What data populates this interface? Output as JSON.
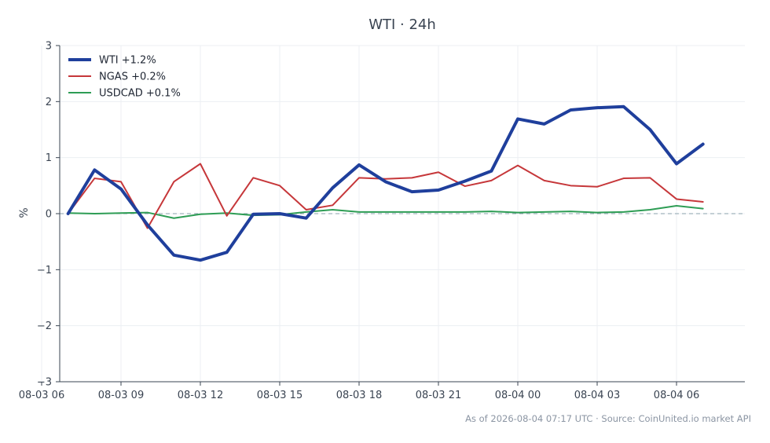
{
  "chart_data": {
    "type": "line",
    "title": "WTI · 24h",
    "xlabel": "",
    "ylabel": "%",
    "ylim": [
      -3,
      3
    ],
    "yticks": [
      "3",
      "2",
      "1",
      "0",
      "−1",
      "−2",
      "−3"
    ],
    "ytick_values": [
      3,
      2,
      1,
      0,
      -1,
      -2,
      -3
    ],
    "xlim": [
      "08-03 06:41",
      "08-04 08:35"
    ],
    "xticks": [
      "08-03 06",
      "08-03 09",
      "08-03 12",
      "08-03 15",
      "08-03 18",
      "08-03 21",
      "08-04 00",
      "08-04 03",
      "08-04 06"
    ],
    "xtick_values": [
      "08-03 06:00",
      "08-03 09:00",
      "08-03 12:00",
      "08-03 15:00",
      "08-03 18:00",
      "08-03 21:00",
      "08-04 00:00",
      "08-04 03:00",
      "08-04 06:00"
    ],
    "x": [
      "08-03 07:00",
      "08-03 08:00",
      "08-03 09:00",
      "08-03 10:00",
      "08-03 11:00",
      "08-03 12:00",
      "08-03 13:00",
      "08-03 14:00",
      "08-03 15:00",
      "08-03 16:00",
      "08-03 17:00",
      "08-03 18:00",
      "08-03 19:00",
      "08-03 20:00",
      "08-03 21:00",
      "08-03 22:00",
      "08-03 23:00",
      "08-04 00:00",
      "08-04 01:00",
      "08-04 02:00",
      "08-04 03:00",
      "08-04 04:00",
      "08-04 05:00",
      "08-04 06:00",
      "08-04 07:00"
    ],
    "grid": true,
    "zero_line": true,
    "legend_position": "top-left",
    "series": [
      {
        "name": "WTI +1.2%",
        "color": "#1f3f9c",
        "values": [
          0.0,
          0.78,
          0.44,
          -0.2,
          -0.74,
          -0.83,
          -0.69,
          -0.01,
          0.0,
          -0.08,
          0.46,
          0.87,
          0.57,
          0.39,
          0.42,
          0.58,
          0.76,
          1.69,
          1.6,
          1.85,
          1.89,
          1.91,
          1.5,
          0.89,
          1.24
        ]
      },
      {
        "name": "NGAS +0.2%",
        "color": "#c6373a",
        "values": [
          0.0,
          0.63,
          0.57,
          -0.26,
          0.57,
          0.89,
          -0.04,
          0.64,
          0.5,
          0.07,
          0.15,
          0.64,
          0.62,
          0.64,
          0.74,
          0.49,
          0.59,
          0.86,
          0.59,
          0.5,
          0.48,
          0.63,
          0.64,
          0.26,
          0.21
        ]
      },
      {
        "name": "USDCAD +0.1%",
        "color": "#2e9d55",
        "values": [
          0.01,
          0.0,
          0.01,
          0.02,
          -0.08,
          -0.01,
          0.01,
          -0.03,
          -0.02,
          0.03,
          0.07,
          0.03,
          0.03,
          0.03,
          0.03,
          0.03,
          0.04,
          0.02,
          0.03,
          0.04,
          0.02,
          0.03,
          0.07,
          0.14,
          0.09
        ]
      }
    ]
  },
  "footer": "As of 2026-08-04 07:17 UTC · Source: CoinUnited.io market API"
}
